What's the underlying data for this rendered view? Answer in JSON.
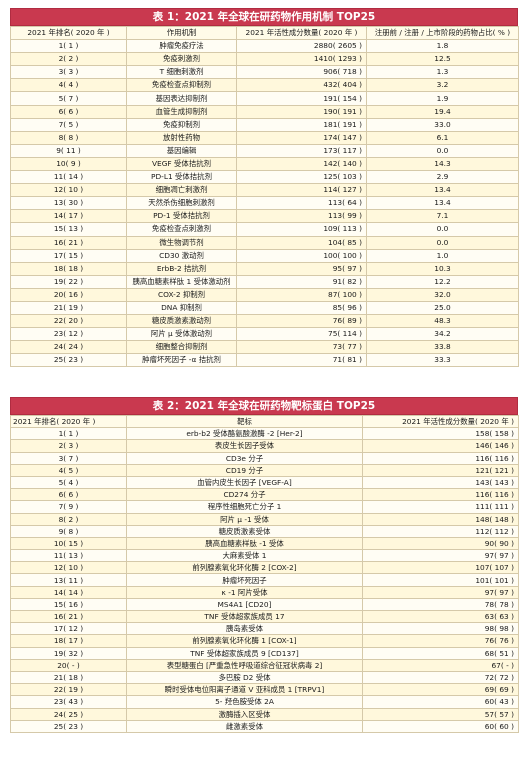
{
  "table1": {
    "title": "表 1：2021 年全球在研药物作用机制 TOP25",
    "headers": [
      "2021 年排名( 2020 年 )",
      "作用机制",
      "2021 年活性成分数量( 2020 年 )",
      "注册前 / 注册 / 上市阶段的药物占比( % )"
    ],
    "rows": [
      [
        "1( 1 )",
        "肿瘤免疫疗法",
        "2880( 2605 )",
        "1.8"
      ],
      [
        "2( 2 )",
        "免疫刺激剂",
        "1410( 1293 )",
        "12.5"
      ],
      [
        "3( 3 )",
        "T 细胞刺激剂",
        "906( 718 )",
        "1.3"
      ],
      [
        "4( 4 )",
        "免疫检查点抑制剂",
        "432( 404 )",
        "3.2"
      ],
      [
        "5( 7 )",
        "基因表达抑制剂",
        "191( 154 )",
        "1.9"
      ],
      [
        "6( 6 )",
        "血管生成抑制剂",
        "190( 191 )",
        "19.4"
      ],
      [
        "7( 5 )",
        "免疫抑制剂",
        "181( 191 )",
        "33.0"
      ],
      [
        "8( 8 )",
        "放射性药物",
        "174( 147 )",
        "6.1"
      ],
      [
        "9( 11 )",
        "基因编辑",
        "173( 117 )",
        "0.0"
      ],
      [
        "10( 9 )",
        "VEGF 受体拮抗剂",
        "142( 140 )",
        "14.3"
      ],
      [
        "11( 14 )",
        "PD-L1 受体拮抗剂",
        "125( 103 )",
        "2.9"
      ],
      [
        "12( 10 )",
        "细胞凋亡刺激剂",
        "114( 127 )",
        "13.4"
      ],
      [
        "13( 30 )",
        "天然杀伤细胞刺激剂",
        "113( 64 )",
        "13.4"
      ],
      [
        "14( 17 )",
        "PD-1 受体拮抗剂",
        "113( 99 )",
        "7.1"
      ],
      [
        "15( 13 )",
        "免疫检查点刺激剂",
        "109( 113 )",
        "0.0"
      ],
      [
        "16( 21 )",
        "微生物调节剂",
        "104( 85 )",
        "0.0"
      ],
      [
        "17( 15 )",
        "CD30 激动剂",
        "100( 100 )",
        "1.0"
      ],
      [
        "18( 18 )",
        "ErbB-2 拮抗剂",
        "95( 97 )",
        "10.3"
      ],
      [
        "19( 22 )",
        "胰高血糖素样肽 1 受体激动剂",
        "91( 82 )",
        "12.2"
      ],
      [
        "20( 16 )",
        "COX-2 抑制剂",
        "87( 100 )",
        "32.0"
      ],
      [
        "21( 19 )",
        "DNA 抑制剂",
        "85( 96 )",
        "25.0"
      ],
      [
        "22( 20 )",
        "糖皮质激素激动剂",
        "76( 89 )",
        "48.3"
      ],
      [
        "23( 12 )",
        "阿片 μ 受体激动剂",
        "75( 114 )",
        "34.2"
      ],
      [
        "24( 24 )",
        "细胞整合抑制剂",
        "73( 77 )",
        "33.8"
      ],
      [
        "25( 23 )",
        "肿瘤坏死因子 -α 拮抗剂",
        "71( 81 )",
        "33.3"
      ]
    ]
  },
  "table2": {
    "title": "表 2：2021 年全球在研药物靶标蛋白 TOP25",
    "headers": [
      "2021 年排名( 2020 年 )",
      "靶标",
      "2021 年活性成分数量( 2020 年 )"
    ],
    "rows": [
      [
        "1( 1 )",
        "erb-b2 受体酪氨酸激酶 -2 [Her-2]",
        "158( 158 )"
      ],
      [
        "2( 3 )",
        "表皮生长因子受体",
        "146( 146 )"
      ],
      [
        "3( 7 )",
        "CD3e 分子",
        "116( 116 )"
      ],
      [
        "4( 5 )",
        "CD19 分子",
        "121( 121 )"
      ],
      [
        "5( 4 )",
        "血管内皮生长因子 [VEGF-A]",
        "143( 143 )"
      ],
      [
        "6( 6 )",
        "CD274 分子",
        "116( 116 )"
      ],
      [
        "7( 9 )",
        "程序性细胞死亡分子 1",
        "111( 111 )"
      ],
      [
        "8( 2 )",
        "阿片 μ -1 受体",
        "148( 148 )"
      ],
      [
        "9( 8 )",
        "糖皮质激素受体",
        "112( 112 )"
      ],
      [
        "10( 15 )",
        "胰高血糖素样肽 -1 受体",
        "90( 90 )"
      ],
      [
        "11( 13 )",
        "大麻素受体 1",
        "97( 97 )"
      ],
      [
        "12( 10 )",
        "前列腺素氧化环化酶 2 [COX-2]",
        "107( 107 )"
      ],
      [
        "13( 11 )",
        "肿瘤坏死因子",
        "101( 101 )"
      ],
      [
        "14( 14 )",
        "κ -1 阿片受体",
        "97( 97 )"
      ],
      [
        "15( 16 )",
        "MS4A1 [CD20]",
        "78( 78 )"
      ],
      [
        "16( 21 )",
        "TNF 受体超家族成员 17",
        "63( 63 )"
      ],
      [
        "17( 12 )",
        "胰岛素受体",
        "98( 98 )"
      ],
      [
        "18( 17 )",
        "前列腺素氧化环化酶 1 [COX-1]",
        "76( 76 )"
      ],
      [
        "19( 32 )",
        "TNF 受体超家族成员 9 [CD137]",
        "68( 51 )"
      ],
      [
        "20( - )",
        "表型糖蛋白 [严重急性呼吸道综合征冠状病毒 2]",
        "67( - )"
      ],
      [
        "21( 18 )",
        "多巴胺 D2 受体",
        "72( 72 )"
      ],
      [
        "22( 19 )",
        "瞬时受体电位阳离子通道 V 亚科成员 1 [TRPV1]",
        "69( 69 )"
      ],
      [
        "23( 43 )",
        "5- 羟色胺受体 2A",
        "60( 43 )"
      ],
      [
        "24( 25 )",
        "激酶插入区受体",
        "57( 57 )"
      ],
      [
        "25( 23 )",
        "雌激素受体",
        "60( 60 )"
      ]
    ]
  }
}
